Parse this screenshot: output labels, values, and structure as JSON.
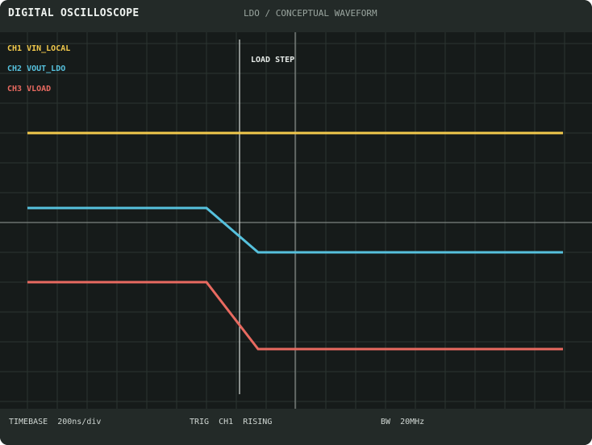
{
  "header": {
    "title": "DIGITAL OSCILLOSCOPE",
    "subtitle": "LDO / CONCEPTUAL WAVEFORM"
  },
  "legend": [
    {
      "label": "CH1 VIN_LOCAL",
      "color": "#f2c94c"
    },
    {
      "label": "CH2 VOUT_LDO",
      "color": "#56c1dd"
    },
    {
      "label": "CH3 VLOAD",
      "color": "#e86a60"
    }
  ],
  "marker": {
    "label": "LOAD STEP"
  },
  "footer": {
    "timebase": "TIMEBASE  200ns/div",
    "trigger": "TRIG  CH1  RISING",
    "bandwidth": "BW  20MHz"
  },
  "colors": {
    "background": "#161b1a",
    "grid": "#2c3431",
    "crosshair": "#b9c0bc",
    "ch1": "#f2c94c",
    "ch2": "#56c1dd",
    "ch3": "#e86a60"
  }
}
